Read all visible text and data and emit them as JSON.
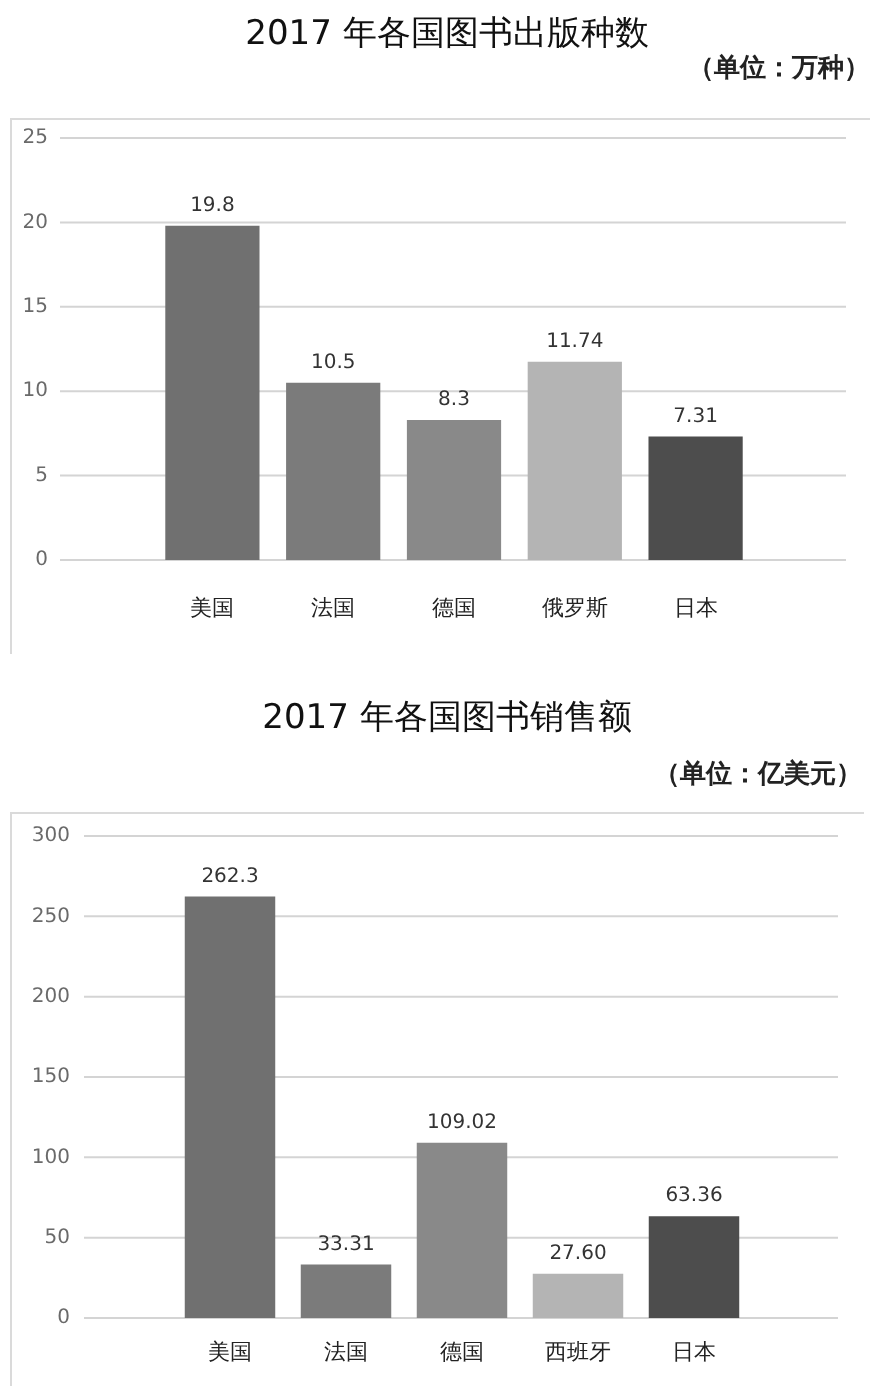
{
  "chart_data": [
    {
      "type": "bar",
      "title": "2017 年各国图书出版种数",
      "subtitle": "（单位：万种）",
      "categories": [
        "美国",
        "法国",
        "德国",
        "俄罗斯",
        "日本"
      ],
      "values": [
        19.8,
        10.5,
        8.3,
        11.74,
        7.31
      ],
      "colors": [
        "#707070",
        "#7b7b7b",
        "#898989",
        "#b4b4b4",
        "#4d4d4d"
      ],
      "ylim": [
        0,
        25
      ],
      "yticks": [
        0,
        5,
        10,
        15,
        20,
        25
      ],
      "grid": "y",
      "data_labels": true
    },
    {
      "type": "bar",
      "title": "2017 年各国图书销售额",
      "subtitle": "（单位：亿美元）",
      "categories": [
        "美国",
        "法国",
        "德国",
        "西班牙",
        "日本"
      ],
      "values": [
        262.3,
        33.31,
        109.02,
        27.6,
        63.36
      ],
      "value_labels": [
        "262.3",
        "33.31",
        "109.02",
        "27.60",
        "63.36"
      ],
      "colors": [
        "#707070",
        "#7b7b7b",
        "#898989",
        "#b4b4b4",
        "#4d4d4d"
      ],
      "ylim": [
        0,
        300
      ],
      "yticks": [
        0,
        50,
        100,
        150,
        200,
        250,
        300
      ],
      "grid": "y"
    }
  ]
}
